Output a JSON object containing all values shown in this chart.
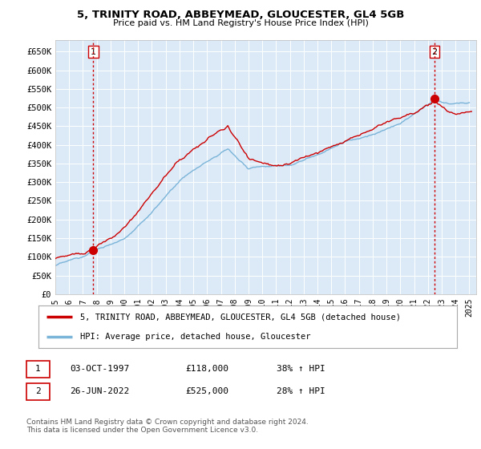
{
  "title": "5, TRINITY ROAD, ABBEYMEAD, GLOUCESTER, GL4 5GB",
  "subtitle": "Price paid vs. HM Land Registry's House Price Index (HPI)",
  "plot_bg_color": "#dce9f7",
  "grid_color": "#ffffff",
  "sale1_date": 1997.75,
  "sale1_price": 118000,
  "sale2_date": 2022.48,
  "sale2_price": 525000,
  "hpi_line_color": "#7ab4d8",
  "price_line_color": "#cc0000",
  "sale_dot_color": "#cc0000",
  "vline_color": "#cc0000",
  "annotation1_label": "1",
  "annotation2_label": "2",
  "legend_line1": "5, TRINITY ROAD, ABBEYMEAD, GLOUCESTER, GL4 5GB (detached house)",
  "legend_line2": "HPI: Average price, detached house, Gloucester",
  "note1_label": "1",
  "note1_date": "03-OCT-1997",
  "note1_price": "£118,000",
  "note1_hpi": "38% ↑ HPI",
  "note2_label": "2",
  "note2_date": "26-JUN-2022",
  "note2_price": "£525,000",
  "note2_hpi": "28% ↑ HPI",
  "footer": "Contains HM Land Registry data © Crown copyright and database right 2024.\nThis data is licensed under the Open Government Licence v3.0.",
  "ylim": [
    0,
    680000
  ],
  "xlim_start": 1995.0,
  "xlim_end": 2025.5,
  "yticks": [
    0,
    50000,
    100000,
    150000,
    200000,
    250000,
    300000,
    350000,
    400000,
    450000,
    500000,
    550000,
    600000,
    650000
  ],
  "ytick_labels": [
    "£0",
    "£50K",
    "£100K",
    "£150K",
    "£200K",
    "£250K",
    "£300K",
    "£350K",
    "£400K",
    "£450K",
    "£500K",
    "£550K",
    "£600K",
    "£650K"
  ],
  "xticks": [
    1995,
    1996,
    1997,
    1998,
    1999,
    2000,
    2001,
    2002,
    2003,
    2004,
    2005,
    2006,
    2007,
    2008,
    2009,
    2010,
    2011,
    2012,
    2013,
    2014,
    2015,
    2016,
    2017,
    2018,
    2019,
    2020,
    2021,
    2022,
    2023,
    2024,
    2025
  ]
}
